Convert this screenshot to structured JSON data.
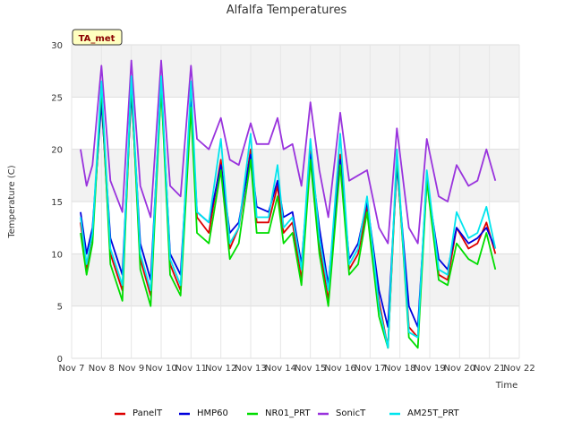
{
  "chart_data": {
    "type": "line",
    "title": "Alfalfa Temperatures",
    "xlabel": "Time",
    "ylabel": "Temperature (C)",
    "badge": "TA_met",
    "xlim": [
      7,
      22
    ],
    "ylim": [
      0,
      30
    ],
    "x_ticks": [
      7,
      8,
      9,
      10,
      11,
      12,
      13,
      14,
      15,
      16,
      17,
      18,
      19,
      20,
      21,
      22
    ],
    "x_tick_labels": [
      "Nov 7",
      "Nov 8",
      "Nov 9",
      "Nov 10",
      "Nov 11",
      "Nov 12",
      "Nov 13",
      "Nov 14",
      "Nov 15",
      "Nov 16",
      "Nov 17",
      "Nov 18",
      "Nov 19",
      "Nov 20",
      "Nov 21",
      "Nov 22"
    ],
    "y_ticks": [
      0,
      5,
      10,
      15,
      20,
      25,
      30
    ],
    "y_tick_labels": [
      "0",
      "5",
      "10",
      "15",
      "20",
      "25",
      "30"
    ],
    "grid": true,
    "legend_position": "bottom",
    "series": [
      {
        "name": "PanelT",
        "color": "#dd0000",
        "x": [
          7.3,
          7.5,
          7.7,
          8.0,
          8.3,
          8.7,
          9.0,
          9.3,
          9.65,
          10.0,
          10.3,
          10.65,
          11.0,
          11.2,
          11.6,
          12.0,
          12.3,
          12.6,
          13.0,
          13.2,
          13.6,
          13.9,
          14.1,
          14.4,
          14.7,
          15.0,
          15.3,
          15.6,
          16.0,
          16.3,
          16.6,
          16.9,
          17.3,
          17.6,
          17.9,
          18.3,
          18.6,
          18.9,
          19.3,
          19.6,
          19.9,
          20.3,
          20.6,
          20.9,
          21.2
        ],
        "y": [
          13.0,
          8.5,
          12.0,
          25.0,
          10.0,
          6.5,
          26.0,
          9.5,
          6.0,
          26.5,
          9.0,
          6.5,
          25.0,
          13.5,
          12.0,
          19.0,
          10.5,
          12.5,
          20.0,
          13.0,
          13.0,
          16.5,
          12.0,
          13.0,
          7.5,
          20.0,
          11.0,
          5.5,
          19.5,
          8.5,
          10.0,
          14.5,
          5.5,
          1.0,
          19.0,
          3.0,
          2.0,
          17.5,
          8.0,
          7.5,
          12.5,
          10.5,
          11.0,
          13.0,
          10.0
        ]
      },
      {
        "name": "HMP60",
        "color": "#0000dd",
        "x": [
          7.3,
          7.5,
          7.7,
          8.0,
          8.3,
          8.7,
          9.0,
          9.3,
          9.65,
          10.0,
          10.3,
          10.65,
          11.0,
          11.2,
          11.6,
          12.0,
          12.3,
          12.6,
          13.0,
          13.2,
          13.6,
          13.9,
          14.1,
          14.4,
          14.7,
          15.0,
          15.3,
          15.6,
          16.0,
          16.3,
          16.6,
          16.9,
          17.3,
          17.6,
          17.9,
          18.3,
          18.6,
          18.9,
          19.3,
          19.6,
          19.9,
          20.3,
          20.6,
          20.9,
          21.2
        ],
        "y": [
          14.0,
          10.0,
          12.5,
          24.5,
          11.5,
          8.0,
          25.5,
          11.0,
          7.5,
          26.0,
          10.0,
          8.0,
          24.5,
          14.0,
          13.0,
          18.5,
          12.0,
          13.0,
          19.5,
          14.5,
          14.0,
          17.0,
          13.5,
          14.0,
          9.0,
          19.5,
          12.5,
          7.0,
          19.0,
          9.5,
          11.0,
          15.0,
          6.5,
          3.0,
          18.5,
          5.0,
          3.0,
          17.0,
          9.5,
          8.5,
          12.5,
          11.0,
          11.5,
          12.5,
          10.5
        ]
      },
      {
        "name": "NR01_PRT",
        "color": "#00dd00",
        "x": [
          7.3,
          7.5,
          7.7,
          8.0,
          8.3,
          8.7,
          9.0,
          9.3,
          9.65,
          10.0,
          10.3,
          10.65,
          11.0,
          11.2,
          11.6,
          12.0,
          12.3,
          12.6,
          13.0,
          13.2,
          13.6,
          13.9,
          14.1,
          14.4,
          14.7,
          15.0,
          15.3,
          15.6,
          16.0,
          16.3,
          16.6,
          16.9,
          17.3,
          17.6,
          17.9,
          18.3,
          18.6,
          18.9,
          19.3,
          19.6,
          19.9,
          20.3,
          20.6,
          20.9,
          21.2
        ],
        "y": [
          12.0,
          8.0,
          11.0,
          26.0,
          9.0,
          5.5,
          26.5,
          8.5,
          5.0,
          26.0,
          8.0,
          6.0,
          24.0,
          12.0,
          11.0,
          18.0,
          9.5,
          11.0,
          19.0,
          12.0,
          12.0,
          15.5,
          11.0,
          12.0,
          7.0,
          19.0,
          10.0,
          5.0,
          18.5,
          8.0,
          9.0,
          14.0,
          4.0,
          1.0,
          19.5,
          2.0,
          1.0,
          17.0,
          7.5,
          7.0,
          11.0,
          9.5,
          9.0,
          12.0,
          8.5
        ]
      },
      {
        "name": "SonicT",
        "color": "#9933dd",
        "x": [
          7.3,
          7.5,
          7.7,
          8.0,
          8.3,
          8.7,
          9.0,
          9.3,
          9.65,
          10.0,
          10.3,
          10.65,
          11.0,
          11.2,
          11.6,
          12.0,
          12.3,
          12.6,
          13.0,
          13.2,
          13.6,
          13.9,
          14.1,
          14.4,
          14.7,
          15.0,
          15.3,
          15.6,
          16.0,
          16.3,
          16.6,
          16.9,
          17.3,
          17.6,
          17.9,
          18.3,
          18.6,
          18.9,
          19.3,
          19.6,
          19.9,
          20.3,
          20.6,
          20.9,
          21.2
        ],
        "y": [
          20.0,
          16.5,
          18.5,
          28.0,
          17.0,
          14.0,
          28.5,
          16.5,
          13.5,
          28.5,
          16.5,
          15.5,
          28.0,
          21.0,
          20.0,
          23.0,
          19.0,
          18.5,
          22.5,
          20.5,
          20.5,
          23.0,
          20.0,
          20.5,
          16.5,
          24.5,
          18.0,
          13.5,
          23.5,
          17.0,
          17.5,
          18.0,
          12.5,
          11.0,
          22.0,
          12.5,
          11.0,
          21.0,
          15.5,
          15.0,
          18.5,
          16.5,
          17.0,
          20.0,
          17.0
        ]
      },
      {
        "name": "AM25T_PRT",
        "color": "#00e5ee",
        "x": [
          7.3,
          7.5,
          7.7,
          8.0,
          8.3,
          8.7,
          9.0,
          9.3,
          9.65,
          10.0,
          10.3,
          10.65,
          11.0,
          11.2,
          11.6,
          12.0,
          12.3,
          12.6,
          13.0,
          13.2,
          13.6,
          13.9,
          14.1,
          14.4,
          14.7,
          15.0,
          15.3,
          15.6,
          16.0,
          16.3,
          16.6,
          16.9,
          17.3,
          17.6,
          17.9,
          18.3,
          18.6,
          18.9,
          19.3,
          19.6,
          19.9,
          20.3,
          20.6,
          20.9,
          21.2
        ],
        "y": [
          13.5,
          9.0,
          12.0,
          26.5,
          10.5,
          7.0,
          27.0,
          10.0,
          6.5,
          27.0,
          9.5,
          7.0,
          26.5,
          14.0,
          13.0,
          21.0,
          11.0,
          12.5,
          21.5,
          13.5,
          13.5,
          18.5,
          12.5,
          13.5,
          8.5,
          21.0,
          11.5,
          6.5,
          21.5,
          9.0,
          10.5,
          15.5,
          5.0,
          1.0,
          20.0,
          2.5,
          2.0,
          18.0,
          8.5,
          8.0,
          14.0,
          11.5,
          12.0,
          14.5,
          10.5
        ]
      }
    ]
  }
}
